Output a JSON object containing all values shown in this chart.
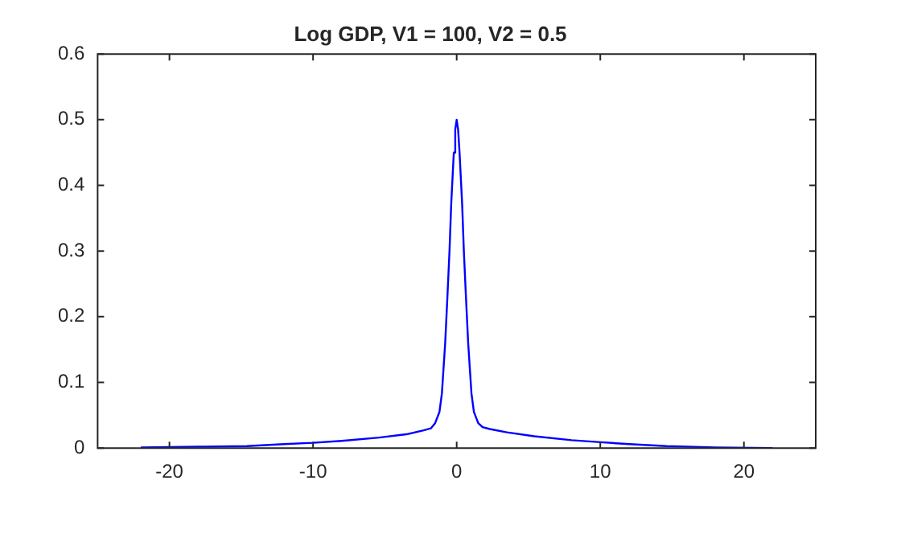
{
  "chart_data": {
    "type": "line",
    "title": "Log GDP, V1 = 100, V2 = 0.5",
    "x": [
      -22,
      -18,
      -14.6,
      -12,
      -10,
      -8,
      -5.4,
      -3.5,
      -2.3,
      -1.8,
      -1.5,
      -1.2,
      -1.03,
      -0.8,
      -0.65,
      -0.5,
      -0.38,
      -0.2,
      -0.1,
      0,
      0.1,
      0.2,
      0.38,
      0.5,
      0.65,
      0.8,
      1.03,
      1.2,
      1.5,
      1.8,
      2.3,
      3.5,
      5.4,
      8,
      10,
      12,
      14.6,
      18,
      22
    ],
    "series": [
      {
        "color": "#0000ff",
        "values": [
          0.001,
          0.002,
          0.003,
          0.006,
          0.008,
          0.011,
          0.016,
          0.021,
          0.027,
          0.03,
          0.038,
          0.055,
          0.083,
          0.16,
          0.228,
          0.3,
          0.372,
          0.45,
          0.485,
          0.5,
          0.485,
          0.45,
          0.372,
          0.3,
          0.228,
          0.16,
          0.083,
          0.055,
          0.038,
          0.032,
          0.029,
          0.024,
          0.018,
          0.012,
          0.009,
          0.006,
          0.003,
          0.001,
          0
        ]
      }
    ],
    "xlim": [
      -25,
      25
    ],
    "xticks": [
      -20,
      -10,
      0,
      10,
      20
    ],
    "ylim": [
      0,
      0.6
    ],
    "yticks": [
      0,
      0.1,
      0.2,
      0.3,
      0.4,
      0.5,
      0.6
    ],
    "grid": false,
    "legend": false,
    "marker": "none",
    "line_style": "solid"
  }
}
